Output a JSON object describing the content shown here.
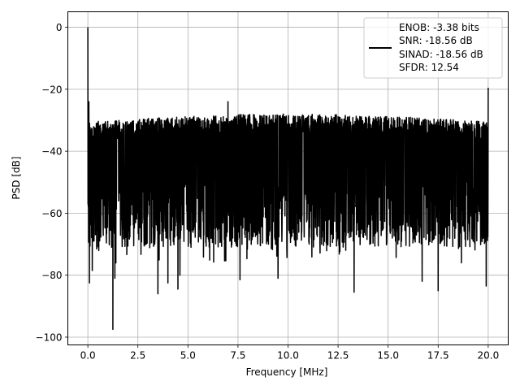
{
  "chart_data": {
    "type": "line",
    "title": "",
    "xlabel": "Frequency [MHz]",
    "ylabel": "PSD [dB]",
    "xlim": [
      -1.0,
      21.0
    ],
    "ylim": [
      -102.5,
      5.0
    ],
    "xticks": [
      0.0,
      2.5,
      5.0,
      7.5,
      10.0,
      12.5,
      15.0,
      17.5,
      20.0
    ],
    "xtick_labels": [
      "0.0",
      "2.5",
      "5.0",
      "7.5",
      "10.0",
      "12.5",
      "15.0",
      "17.5",
      "20.0"
    ],
    "yticks": [
      0,
      -20,
      -40,
      -60,
      -80,
      -100
    ],
    "ytick_labels": [
      "0",
      "−20",
      "−40",
      "−60",
      "−80",
      "−100"
    ],
    "grid": true,
    "legend_position": "top-right",
    "legend": [
      "ENOB: -3.38 bits",
      "SNR: -18.56 dB",
      "SINAD: -18.56 dB",
      "SFDR: 12.54"
    ],
    "series": [
      {
        "color": "#000000",
        "description": "Power spectral density from 0 to 20 MHz: dense noise floor between about -30 and -75 dB with deep nulls, a peak at DC and a spur at 20 MHz",
        "peaks": [
          {
            "x": 0.0,
            "y": 0.0
          },
          {
            "x": 0.05,
            "y": -24.0
          },
          {
            "x": 7.0,
            "y": -24.0
          },
          {
            "x": 20.0,
            "y": -19.5
          }
        ],
        "nulls": [
          {
            "x": 0.08,
            "y": -82.5
          },
          {
            "x": 0.22,
            "y": -78.5
          },
          {
            "x": 1.25,
            "y": -97.5
          },
          {
            "x": 1.35,
            "y": -81.0
          },
          {
            "x": 3.5,
            "y": -86.0
          },
          {
            "x": 4.0,
            "y": -82.5
          },
          {
            "x": 4.5,
            "y": -84.5
          },
          {
            "x": 4.6,
            "y": -80.0
          },
          {
            "x": 7.6,
            "y": -81.5
          },
          {
            "x": 9.5,
            "y": -81.0
          },
          {
            "x": 13.3,
            "y": -85.5
          },
          {
            "x": 16.7,
            "y": -82.0
          },
          {
            "x": 17.5,
            "y": -85.0
          },
          {
            "x": 19.9,
            "y": -83.5
          },
          {
            "x": 20.0,
            "y": -86.5
          }
        ],
        "noise_floor": {
          "upper_db": -30.0,
          "lower_db": -75.0,
          "end_x": 20.0
        }
      }
    ]
  }
}
